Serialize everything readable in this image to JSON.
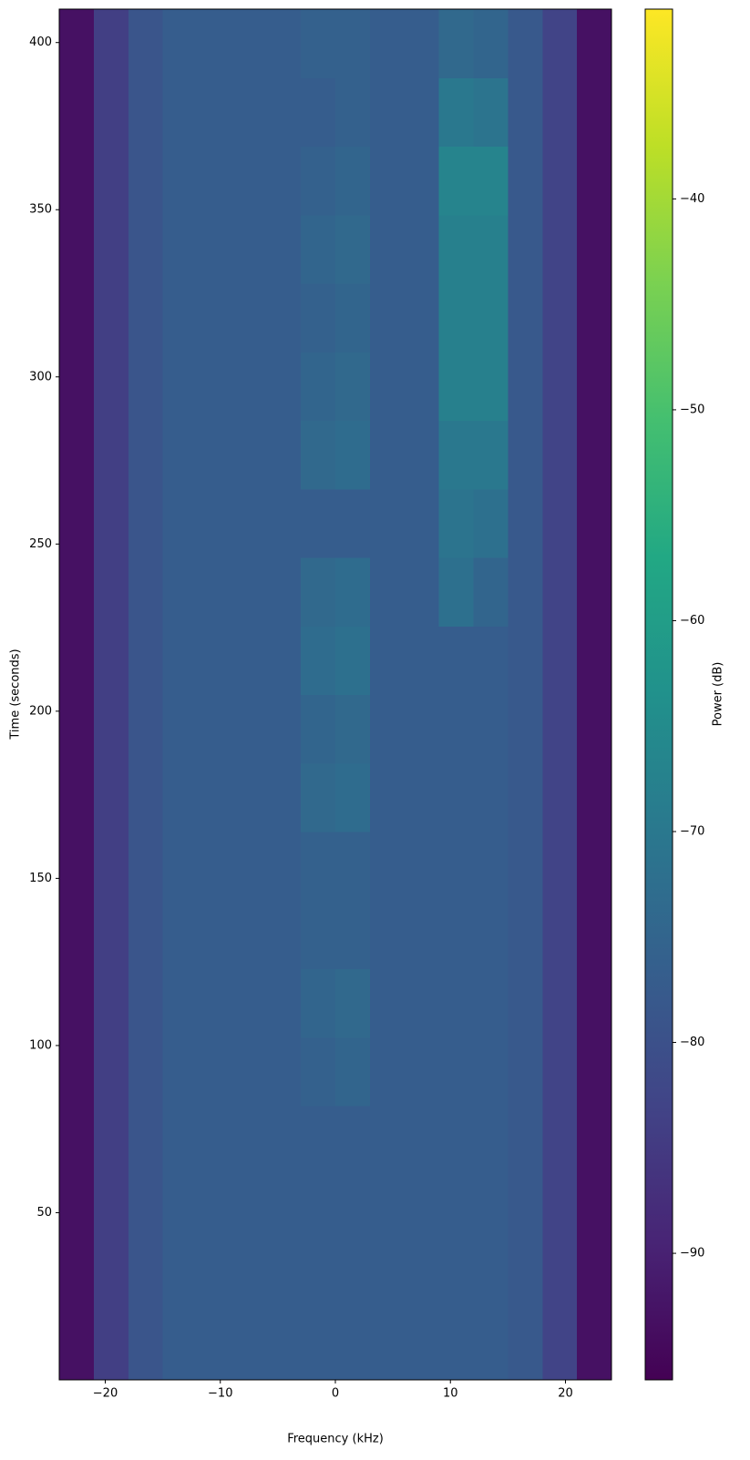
{
  "chart_data": {
    "type": "heatmap",
    "xlabel": "Frequency (kHz)",
    "ylabel": "Time (seconds)",
    "colorbar_label": "Power (dB)",
    "colormap": "viridis",
    "clim": [
      -96,
      -31
    ],
    "xlim": [
      -24,
      24
    ],
    "ylim": [
      0,
      410
    ],
    "xticks": [
      {
        "value": -20,
        "label": "−20"
      },
      {
        "value": -10,
        "label": "−10"
      },
      0,
      10,
      20
    ],
    "yticks": [
      50,
      100,
      150,
      200,
      250,
      300,
      350,
      400
    ],
    "cticks": [
      {
        "value": -90,
        "label": "−90"
      },
      {
        "value": -80,
        "label": "−80"
      },
      {
        "value": -70,
        "label": "−70"
      },
      {
        "value": -60,
        "label": "−60"
      },
      {
        "value": -50,
        "label": "−50"
      },
      {
        "value": -40,
        "label": "−40"
      }
    ],
    "xbins": [
      -24,
      -21,
      -18,
      -15,
      -12,
      -9,
      -6,
      -3,
      0,
      3,
      6,
      9,
      12,
      15,
      18,
      21,
      24
    ],
    "ybins": [
      0,
      20.5,
      41,
      61.5,
      82,
      102.5,
      123,
      143.5,
      164,
      184.5,
      205,
      225.5,
      246,
      266.5,
      287,
      307.5,
      328,
      348.5,
      369,
      389.5,
      410
    ],
    "values": [
      [
        -93,
        -84,
        -79,
        -77,
        -77,
        -77,
        -77,
        -77,
        -77,
        -77,
        -77,
        -77,
        -77,
        -78,
        -83,
        -93
      ],
      [
        -93,
        -84,
        -79,
        -77,
        -77,
        -77,
        -77,
        -77,
        -77,
        -77,
        -77,
        -77,
        -77,
        -78,
        -83,
        -93
      ],
      [
        -93,
        -84,
        -79,
        -77,
        -77,
        -77,
        -77,
        -77,
        -77,
        -77,
        -77,
        -77,
        -77,
        -78,
        -83,
        -93
      ],
      [
        -93,
        -84,
        -79,
        -77,
        -77,
        -77,
        -77,
        -77,
        -77,
        -77,
        -77,
        -77,
        -77,
        -78,
        -83,
        -93
      ],
      [
        -93,
        -84,
        -79,
        -77,
        -77,
        -77,
        -77,
        -76,
        -75,
        -77,
        -77,
        -77,
        -77,
        -78,
        -83,
        -93
      ],
      [
        -93,
        -84,
        -79,
        -77,
        -77,
        -77,
        -77,
        -75,
        -74,
        -77,
        -77,
        -77,
        -77,
        -78,
        -83,
        -93
      ],
      [
        -93,
        -84,
        -79,
        -77,
        -77,
        -77,
        -77,
        -76,
        -76,
        -77,
        -77,
        -77,
        -77,
        -78,
        -83,
        -93
      ],
      [
        -93,
        -84,
        -79,
        -77,
        -77,
        -77,
        -77,
        -76,
        -76,
        -77,
        -77,
        -77,
        -77,
        -78,
        -83,
        -93
      ],
      [
        -93,
        -84,
        -79,
        -77,
        -77,
        -77,
        -77,
        -74,
        -73,
        -77,
        -77,
        -77,
        -77,
        -78,
        -83,
        -93
      ],
      [
        -93,
        -84,
        -79,
        -77,
        -77,
        -77,
        -77,
        -75,
        -74,
        -77,
        -77,
        -77,
        -77,
        -78,
        -83,
        -93
      ],
      [
        -93,
        -84,
        -79,
        -77,
        -77,
        -77,
        -77,
        -73,
        -72,
        -77,
        -77,
        -77,
        -77,
        -78,
        -83,
        -93
      ],
      [
        -93,
        -84,
        -79,
        -77,
        -77,
        -77,
        -77,
        -74,
        -73,
        -77,
        -77,
        -72,
        -75,
        -78,
        -83,
        -93
      ],
      [
        -93,
        -84,
        -79,
        -77,
        -77,
        -77,
        -77,
        -77,
        -77,
        -77,
        -77,
        -71,
        -72,
        -78,
        -83,
        -93
      ],
      [
        -93,
        -84,
        -79,
        -77,
        -77,
        -77,
        -77,
        -74,
        -73,
        -77,
        -77,
        -70,
        -70,
        -78,
        -83,
        -93
      ],
      [
        -93,
        -84,
        -79,
        -77,
        -77,
        -77,
        -77,
        -75,
        -74,
        -77,
        -77,
        -68,
        -68,
        -78,
        -83,
        -93
      ],
      [
        -93,
        -84,
        -79,
        -77,
        -77,
        -77,
        -77,
        -76,
        -75,
        -77,
        -77,
        -68,
        -68,
        -78,
        -83,
        -93
      ],
      [
        -93,
        -84,
        -79,
        -77,
        -77,
        -77,
        -77,
        -75,
        -74,
        -77,
        -77,
        -68,
        -68,
        -78,
        -83,
        -93
      ],
      [
        -93,
        -84,
        -79,
        -77,
        -77,
        -77,
        -77,
        -76,
        -75,
        -77,
        -77,
        -67,
        -67,
        -78,
        -83,
        -93
      ],
      [
        -93,
        -84,
        -79,
        -77,
        -77,
        -77,
        -77,
        -77,
        -76,
        -77,
        -77,
        -70,
        -71,
        -78,
        -83,
        -93
      ],
      [
        -93,
        -84,
        -79,
        -77,
        -77,
        -77,
        -77,
        -76,
        -76,
        -77,
        -77,
        -74,
        -75,
        -78,
        -83,
        -93
      ]
    ]
  }
}
